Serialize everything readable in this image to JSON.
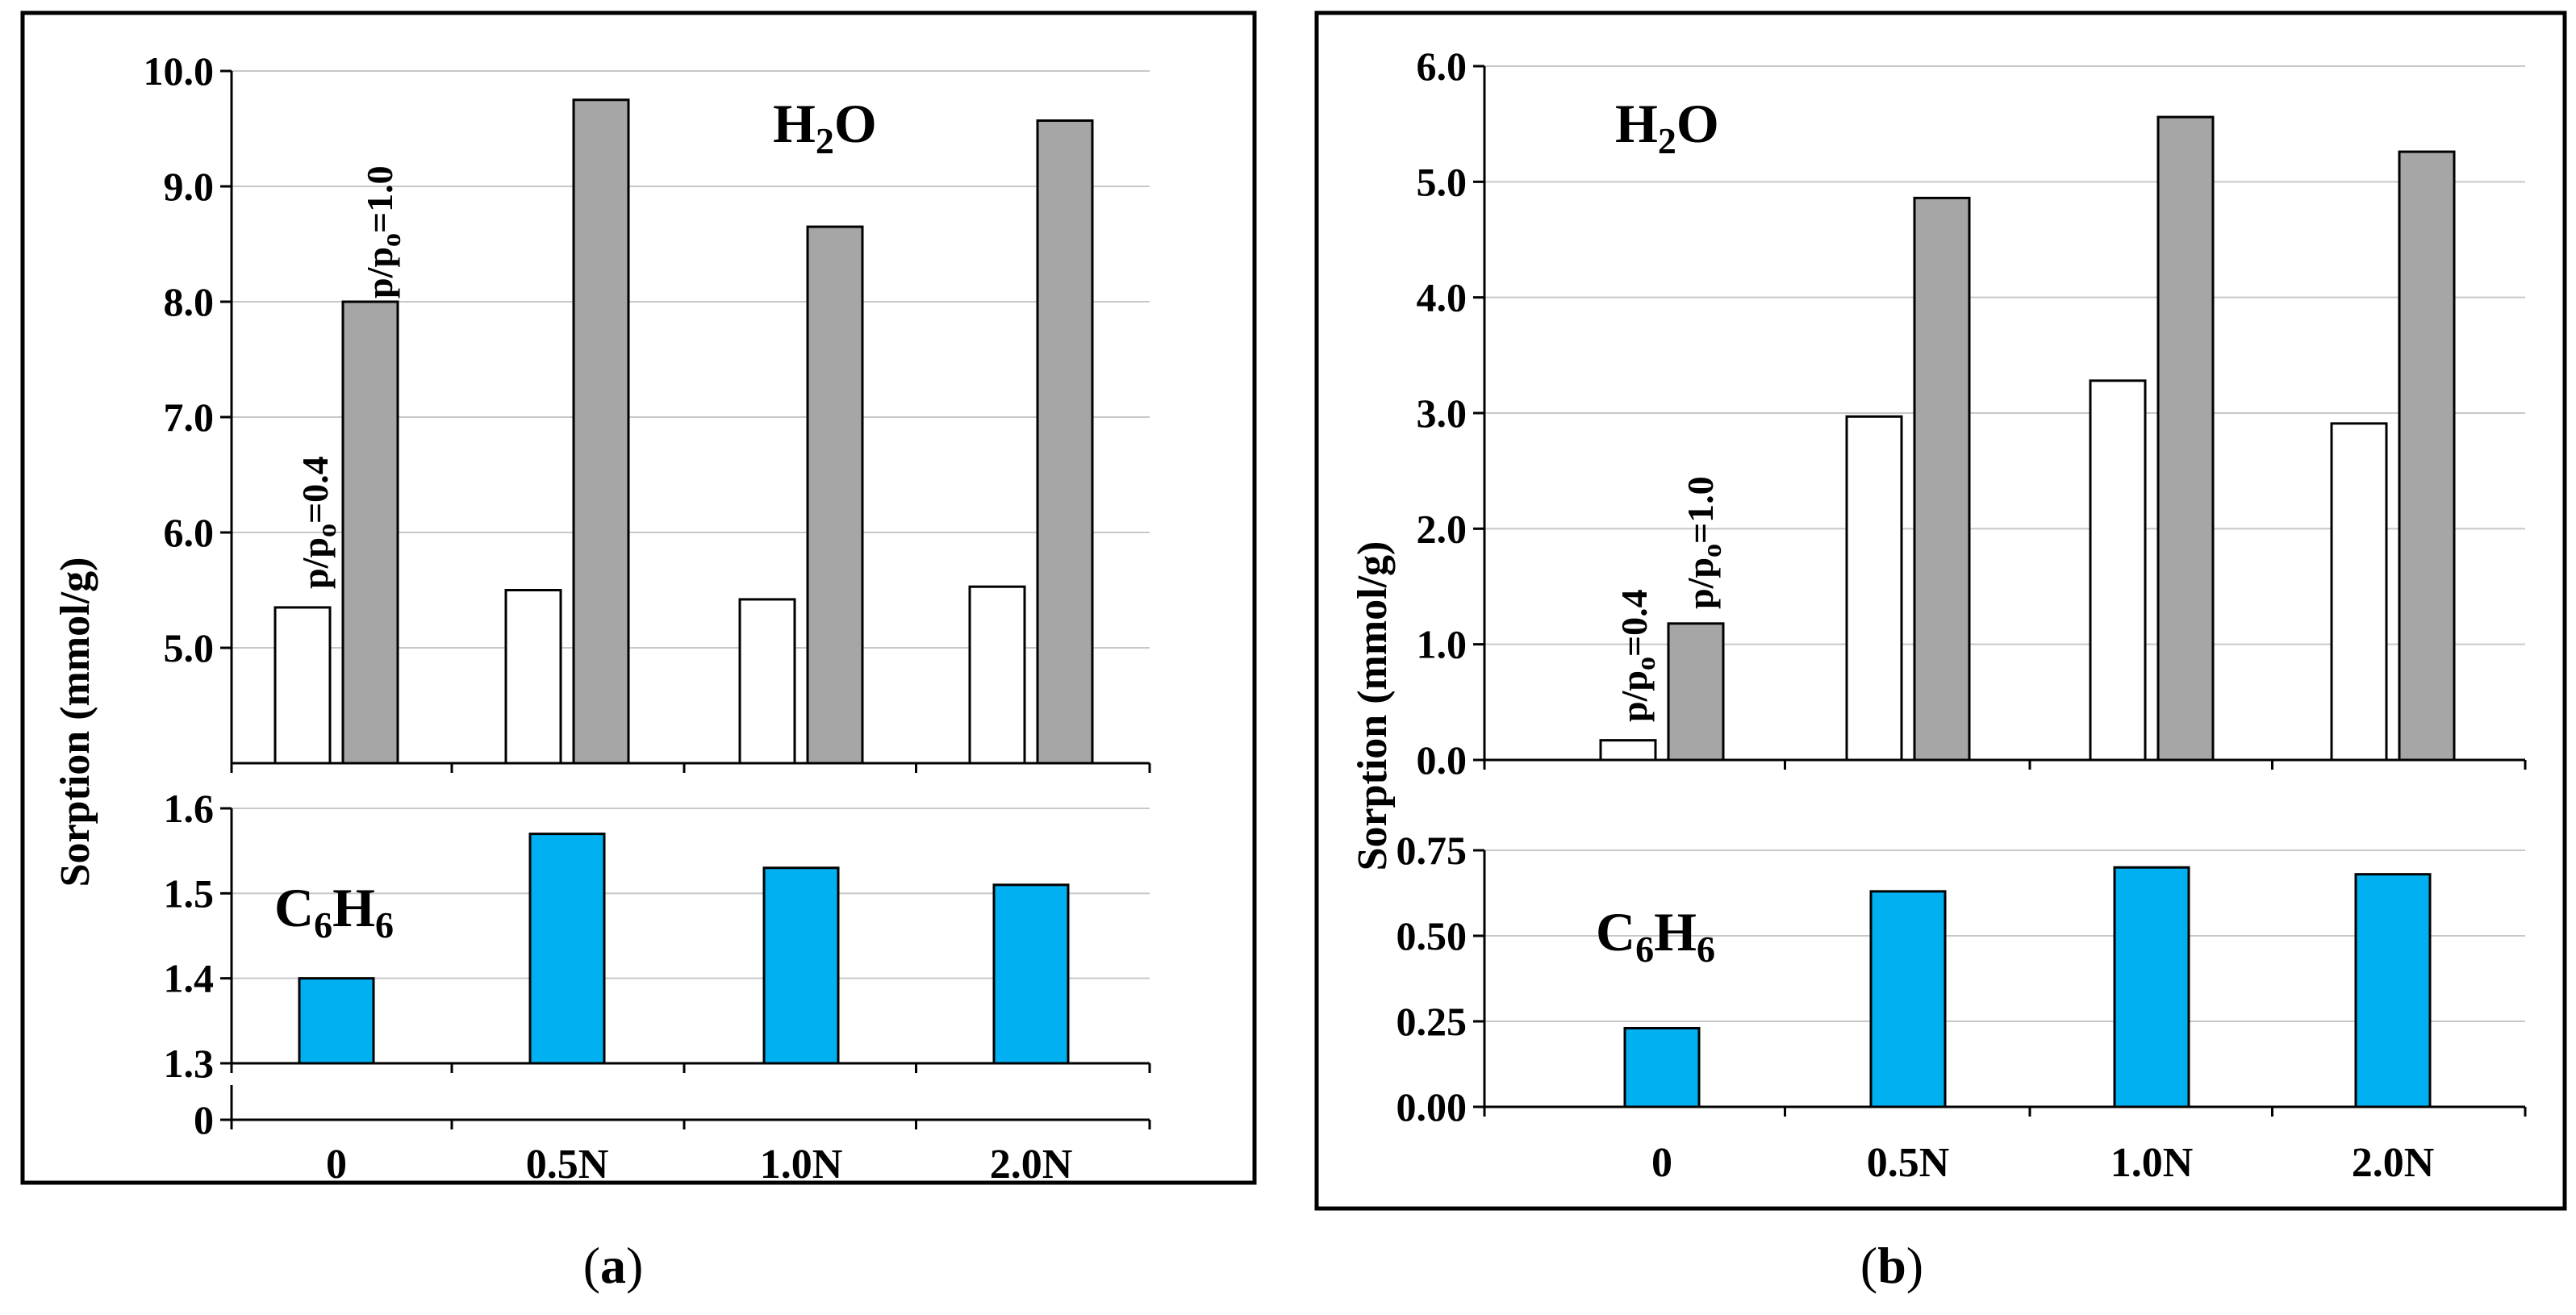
{
  "chart_data": [
    {
      "panel": "a",
      "type": "bar",
      "caption": {
        "open": "(",
        "letter": "a",
        "close": ")"
      },
      "ylabel": "Sorption (mmol/g)",
      "categories": [
        "0",
        "0.5N",
        "1.0N",
        "2.0N"
      ],
      "upper": {
        "label": {
          "main": "H",
          "sub": "2",
          "rest": "O"
        },
        "ylim": [
          4.0,
          10.0
        ],
        "ticks": [
          "5.0",
          "6.0",
          "7.0",
          "8.0",
          "9.0",
          "10.0"
        ],
        "series": [
          {
            "values": [
              5.35,
              5.5,
              5.42,
              5.53
            ],
            "color": "#ffffff"
          },
          {
            "values": [
              8.0,
              9.75,
              8.65,
              9.57
            ],
            "color": "#a6a6a6"
          }
        ],
        "annotations": [
          {
            "base": "p/p",
            "sub": "o",
            "rest": "=0.4"
          },
          {
            "base": "p/p",
            "sub": "o",
            "rest": "=1.0"
          }
        ]
      },
      "lower": {
        "label": {
          "a": "C",
          "sa": "6",
          "b": "H",
          "sb": "6"
        },
        "ylim": [
          1.3,
          1.6
        ],
        "ticks": [
          "1.3",
          "1.4",
          "1.5",
          "1.6"
        ],
        "zero_tick": "0",
        "series": [
          {
            "values": [
              1.4,
              1.57,
              1.53,
              1.51
            ],
            "color": "#00b0f0"
          }
        ]
      }
    },
    {
      "panel": "b",
      "type": "bar",
      "caption": {
        "open": "(",
        "letter": "b",
        "close": ")"
      },
      "ylabel": "Sorption (mmol/g)",
      "categories": [
        "0",
        "0.5N",
        "1.0N",
        "2.0N"
      ],
      "upper": {
        "label": {
          "main": "H",
          "sub": "2",
          "rest": "O"
        },
        "ylim": [
          0.0,
          6.0
        ],
        "ticks": [
          "0.0",
          "1.0",
          "2.0",
          "3.0",
          "4.0",
          "5.0",
          "6.0"
        ],
        "series": [
          {
            "values": [
              0.17,
              2.97,
              3.28,
              2.91
            ],
            "color": "#ffffff"
          },
          {
            "values": [
              1.18,
              4.86,
              5.56,
              5.26
            ],
            "color": "#a6a6a6"
          }
        ],
        "annotations": [
          {
            "base": "p/p",
            "sub": "o",
            "rest": "=0.4"
          },
          {
            "base": "p/p",
            "sub": "o",
            "rest": "=1.0"
          }
        ]
      },
      "lower": {
        "label": {
          "a": "C",
          "sa": "6",
          "b": "H",
          "sb": "6"
        },
        "ylim": [
          0.0,
          0.75
        ],
        "ticks": [
          "0.00",
          "0.25",
          "0.50",
          "0.75"
        ],
        "series": [
          {
            "values": [
              0.23,
              0.63,
              0.7,
              0.68
            ],
            "color": "#00b0f0"
          }
        ]
      }
    }
  ]
}
